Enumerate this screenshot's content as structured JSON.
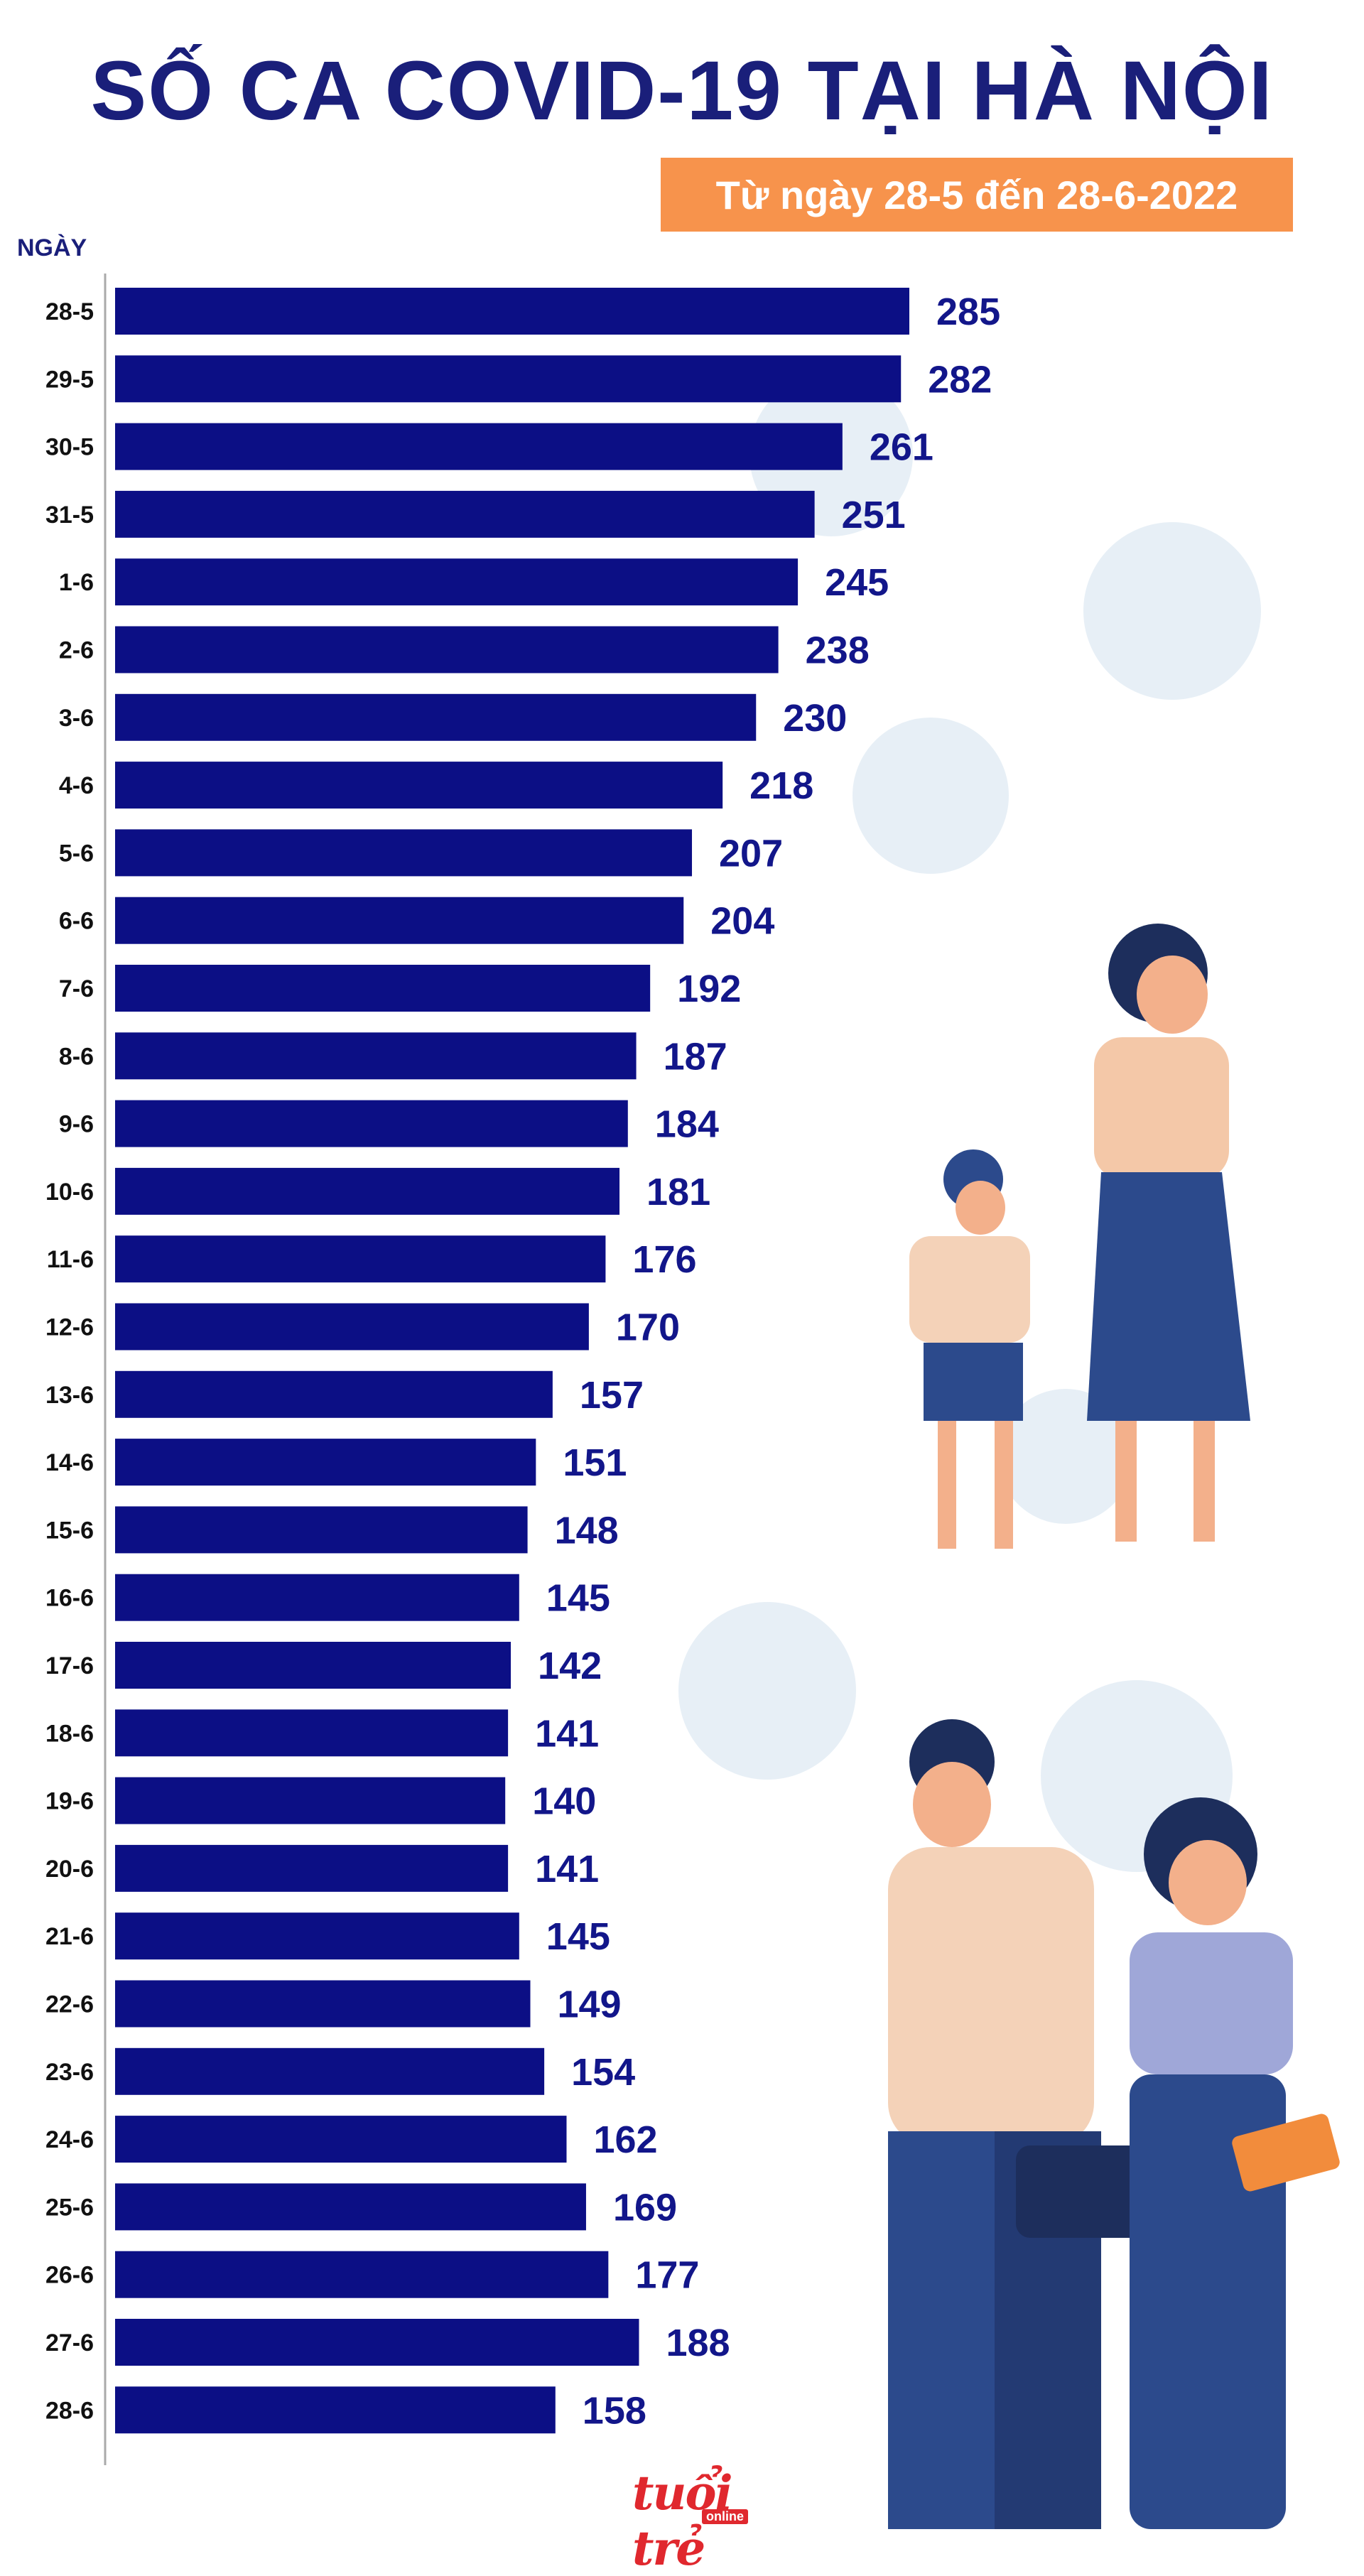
{
  "header": {
    "title": "SỐ CA COVID-19 TẠI HÀ NỘI",
    "subtitle": "Từ ngày 28-5 đến 28-6-2022"
  },
  "chart_data": {
    "type": "bar",
    "orientation": "horizontal",
    "title": "SỐ CA COVID-19 TẠI HÀ NỘI",
    "subtitle": "Từ ngày 28-5 đến 28-6-2022",
    "ylabel": "NGÀY",
    "xlabel": "",
    "categories": [
      "28-5",
      "29-5",
      "30-5",
      "31-5",
      "1-6",
      "2-6",
      "3-6",
      "4-6",
      "5-6",
      "6-6",
      "7-6",
      "8-6",
      "9-6",
      "10-6",
      "11-6",
      "12-6",
      "13-6",
      "14-6",
      "15-6",
      "16-6",
      "17-6",
      "18-6",
      "19-6",
      "20-6",
      "21-6",
      "22-6",
      "23-6",
      "24-6",
      "25-6",
      "26-6",
      "27-6",
      "28-6"
    ],
    "values": [
      285,
      282,
      261,
      251,
      245,
      238,
      230,
      218,
      207,
      204,
      192,
      187,
      184,
      181,
      176,
      170,
      157,
      151,
      148,
      145,
      142,
      141,
      140,
      141,
      145,
      149,
      154,
      162,
      169,
      177,
      188,
      158
    ],
    "xlim": [
      0,
      285
    ],
    "grid": false,
    "bar_color": "#0c0f85",
    "value_color": "#12168a"
  },
  "logo": {
    "main": "tuổi trẻ",
    "sub": "online"
  }
}
